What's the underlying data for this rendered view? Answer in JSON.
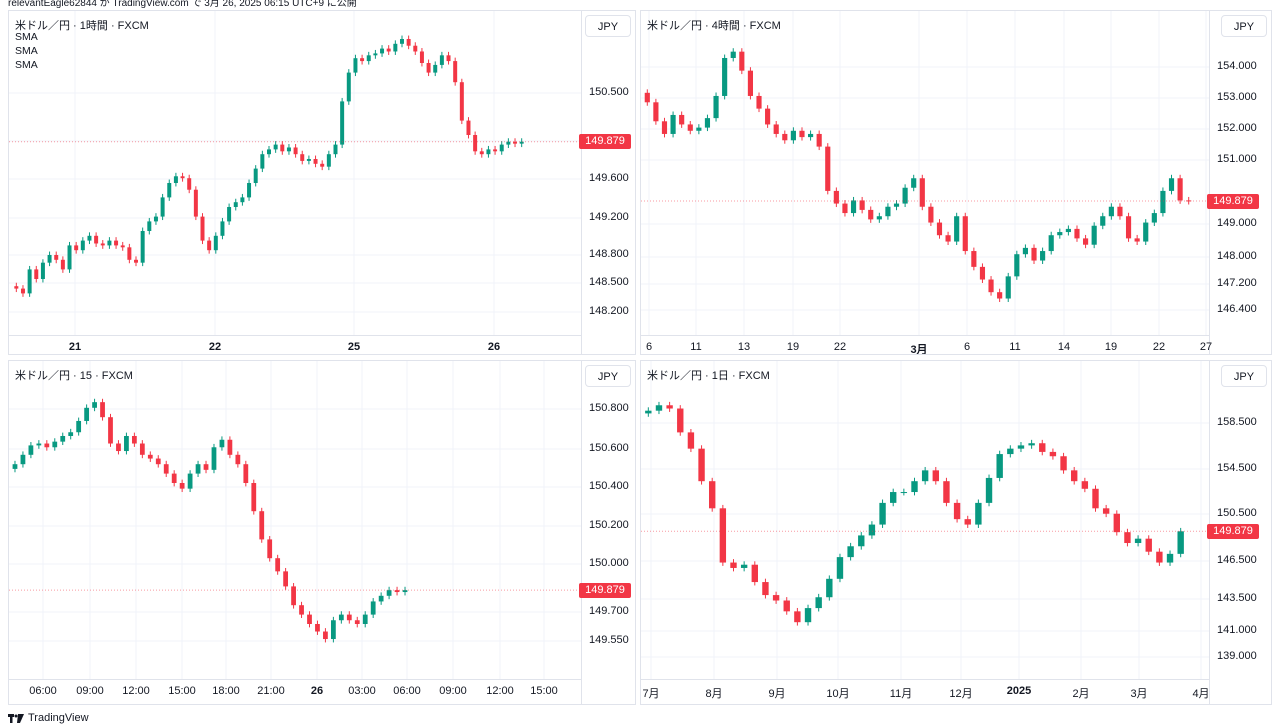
{
  "header": {
    "text": "relevantEagle62844 が TradingView.com で 3月 26, 2025 06:15 UTC+9 に公開"
  },
  "footer": {
    "brand": "TradingView"
  },
  "colors": {
    "up": "#089981",
    "down": "#f23645",
    "grid": "#f0f3fa",
    "border": "#e0e3eb"
  },
  "panels": [
    {
      "title": "米ドル／円 · 1時間 · FXCM",
      "indicators": [
        "SMA",
        "SMA",
        "SMA"
      ],
      "unit": "JPY",
      "last_price": "149.879",
      "y_labels": [
        "150.500",
        "150.000",
        "149.600",
        "149.200",
        "148.800",
        "148.500",
        "148.200"
      ],
      "x_labels": [
        "21",
        "22",
        "25",
        "26"
      ],
      "bold_x": [
        "21",
        "22",
        "25",
        "26"
      ],
      "ylim": [
        147.95,
        150.95
      ],
      "series": [
        148.35,
        148.3,
        148.55,
        148.45,
        148.62,
        148.7,
        148.65,
        148.55,
        148.8,
        148.75,
        148.85,
        148.9,
        148.82,
        148.8,
        148.85,
        148.8,
        148.78,
        148.65,
        148.62,
        148.95,
        149.05,
        149.1,
        149.3,
        149.45,
        149.52,
        149.5,
        149.38,
        149.1,
        148.85,
        148.75,
        148.9,
        149.05,
        149.2,
        149.25,
        149.3,
        149.45,
        149.6,
        149.75,
        149.8,
        149.85,
        149.78,
        149.82,
        149.75,
        149.68,
        149.7,
        149.65,
        149.62,
        149.75,
        149.85,
        150.3,
        150.6,
        150.75,
        150.72,
        150.78,
        150.8,
        150.85,
        150.82,
        150.9,
        150.95,
        150.88,
        150.82,
        150.7,
        150.6,
        150.68,
        150.78,
        150.72,
        150.5,
        150.1,
        149.95,
        149.78,
        149.75,
        149.8,
        149.78,
        149.85,
        149.88,
        149.86,
        149.88
      ]
    },
    {
      "title": "米ドル／円 · 4時間 · FXCM",
      "indicators": [],
      "unit": "JPY",
      "last_price": "149.879",
      "y_labels": [
        "154.000",
        "153.000",
        "152.000",
        "151.000",
        "149.000",
        "148.000",
        "147.200",
        "146.400"
      ],
      "x_labels": [
        "6",
        "11",
        "13",
        "19",
        "22",
        "3月",
        "6",
        "11",
        "14",
        "19",
        "22",
        "27"
      ],
      "bold_x": [
        "3月"
      ],
      "ylim": [
        145.9,
        155.0
      ],
      "series": [
        153.0,
        152.4,
        152.0,
        152.6,
        152.3,
        152.1,
        152.2,
        152.5,
        153.2,
        154.4,
        154.6,
        154.0,
        153.2,
        152.8,
        152.3,
        152.0,
        151.8,
        152.1,
        151.9,
        152.0,
        151.6,
        150.2,
        149.8,
        149.5,
        149.9,
        149.6,
        149.3,
        149.4,
        149.7,
        149.8,
        150.3,
        150.6,
        149.7,
        149.2,
        148.8,
        148.6,
        149.4,
        148.3,
        147.8,
        147.4,
        147.0,
        146.8,
        147.5,
        148.2,
        148.4,
        148.0,
        148.3,
        148.8,
        148.9,
        149.0,
        148.7,
        148.5,
        149.1,
        149.4,
        149.7,
        149.4,
        148.7,
        148.6,
        149.2,
        149.5,
        150.2,
        150.6,
        149.9,
        149.88
      ]
    },
    {
      "title": "米ドル／円 · 15 · FXCM",
      "indicators": [],
      "unit": "JPY",
      "last_price": "149.879",
      "y_labels": [
        "150.800",
        "150.600",
        "150.400",
        "150.200",
        "150.000",
        "149.700",
        "149.550"
      ],
      "x_labels": [
        "06:00",
        "09:00",
        "12:00",
        "15:00",
        "18:00",
        "21:00",
        "26",
        "03:00",
        "06:00",
        "09:00",
        "12:00",
        "15:00"
      ],
      "bold_x": [
        "26"
      ],
      "ylim": [
        149.45,
        150.95
      ],
      "series": [
        150.55,
        150.6,
        150.65,
        150.66,
        150.64,
        150.67,
        150.7,
        150.72,
        150.78,
        150.85,
        150.88,
        150.8,
        150.66,
        150.62,
        150.7,
        150.66,
        150.6,
        150.58,
        150.55,
        150.5,
        150.45,
        150.42,
        150.5,
        150.55,
        150.52,
        150.64,
        150.68,
        150.6,
        150.55,
        150.45,
        150.3,
        150.15,
        150.05,
        149.98,
        149.9,
        149.8,
        149.75,
        149.7,
        149.66,
        149.62,
        149.72,
        149.75,
        149.72,
        149.7,
        149.75,
        149.82,
        149.85,
        149.88,
        149.87,
        149.88
      ]
    },
    {
      "title": "米ドル／円 · 1日 · FXCM",
      "indicators": [],
      "unit": "JPY",
      "last_price": "149.879",
      "y_labels": [
        "158.500",
        "154.500",
        "150.500",
        "146.500",
        "143.500",
        "141.000",
        "139.000"
      ],
      "x_labels": [
        "7月",
        "8月",
        "9月",
        "10月",
        "11月",
        "12月",
        "2025",
        "2月",
        "3月",
        "4月"
      ],
      "bold_x": [
        "2025"
      ],
      "ylim": [
        137.0,
        163.0
      ],
      "series": [
        161.0,
        161.5,
        161.2,
        159.0,
        157.5,
        154.5,
        152.0,
        147.0,
        146.5,
        146.8,
        145.2,
        144.0,
        143.5,
        142.5,
        141.5,
        142.8,
        143.8,
        145.5,
        147.5,
        148.5,
        149.5,
        150.5,
        152.5,
        153.5,
        153.5,
        154.5,
        155.5,
        154.5,
        152.5,
        151.0,
        150.5,
        152.5,
        154.8,
        157.0,
        157.5,
        157.8,
        158.0,
        157.2,
        156.8,
        155.5,
        154.5,
        153.8,
        152.0,
        151.5,
        149.8,
        148.8,
        149.2,
        148.0,
        147.0,
        147.8,
        149.88
      ]
    }
  ]
}
